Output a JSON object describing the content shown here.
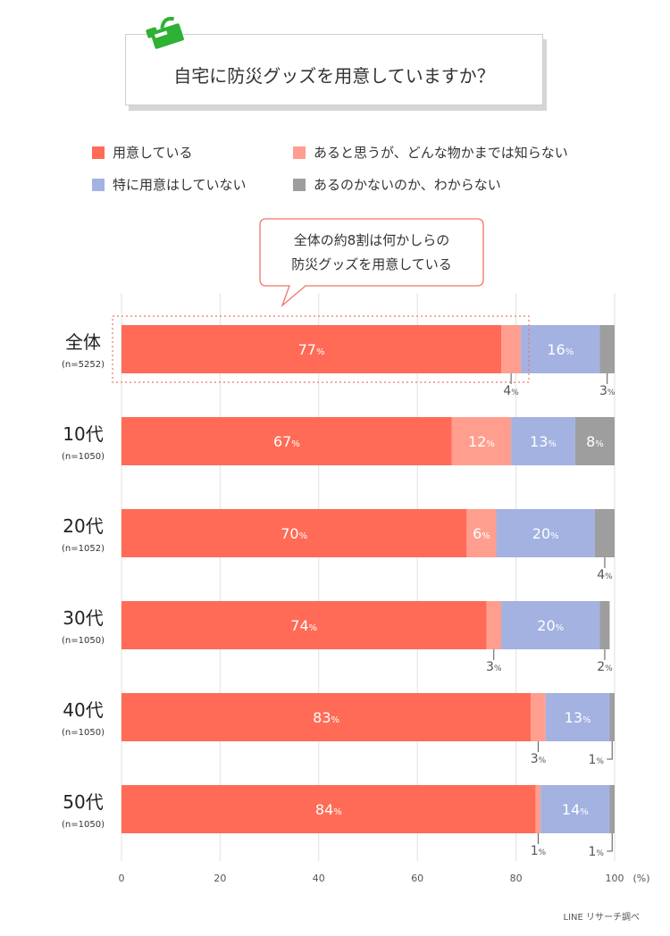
{
  "header": {
    "title": "自宅に防災グッズを用意していますか？",
    "icon": "bucket-icon",
    "icon_color": "#2eb135"
  },
  "legend": [
    {
      "label": "用意している",
      "color": "#ff6b56"
    },
    {
      "label": "あると思うが、どんな物かまでは知らない",
      "color": "#ff9e8e"
    },
    {
      "label": "特に用意はしていない",
      "color": "#a3b2e0"
    },
    {
      "label": "あるのかないのか、わからない",
      "color": "#9e9e9e"
    }
  ],
  "callout": {
    "line1": "全体の約8割は何かしらの",
    "line2": "防災グッズを用意している",
    "border_color": "#f07566"
  },
  "chart_data": {
    "type": "bar",
    "orientation": "horizontal",
    "stacked": true,
    "categories": [
      {
        "label": "全体",
        "n": "(n=5252)"
      },
      {
        "label": "10代",
        "n": "(n=1050)"
      },
      {
        "label": "20代",
        "n": "(n=1052)"
      },
      {
        "label": "30代",
        "n": "(n=1050)"
      },
      {
        "label": "40代",
        "n": "(n=1050)"
      },
      {
        "label": "50代",
        "n": "(n=1050)"
      }
    ],
    "series": [
      {
        "name": "用意している",
        "values": [
          77,
          67,
          70,
          74,
          83,
          84
        ]
      },
      {
        "name": "あると思うが、どんな物かまでは知らない",
        "values": [
          4,
          12,
          6,
          3,
          3,
          1
        ]
      },
      {
        "name": "特に用意はしていない",
        "values": [
          16,
          13,
          20,
          20,
          13,
          14
        ]
      },
      {
        "name": "あるのかないのか、わからない",
        "values": [
          3,
          8,
          4,
          2,
          1,
          1
        ]
      }
    ],
    "value_suffix": "%",
    "xlim": [
      0,
      100
    ],
    "xticks": [
      0,
      20,
      40,
      60,
      80,
      100
    ],
    "x_unit_label": "(%)",
    "grid": true,
    "highlighted_category": "全体"
  },
  "footer": {
    "credit": "LINE リサーチ調べ"
  }
}
